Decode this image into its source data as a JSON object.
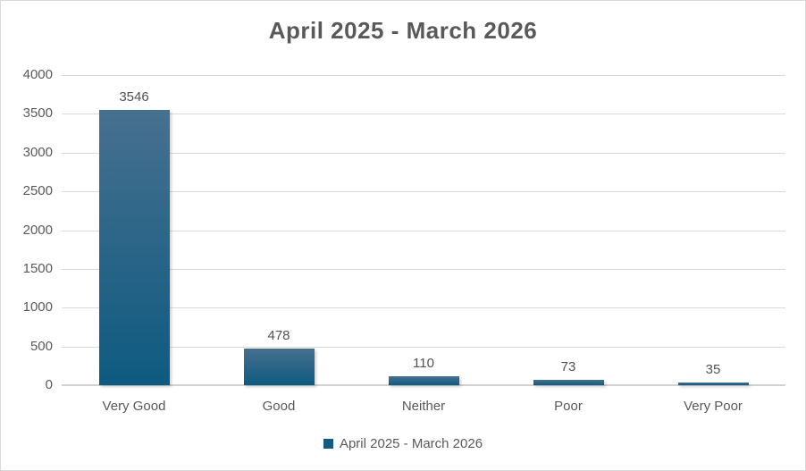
{
  "chart_data": {
    "type": "bar",
    "title": "April 2025 - March 2026",
    "categories": [
      "Very Good",
      "Good",
      "Neither",
      "Poor",
      "Very Poor"
    ],
    "values": [
      3546,
      478,
      110,
      73,
      35
    ],
    "xlabel": "",
    "ylabel": "",
    "ylim": [
      0,
      4000
    ],
    "yticks": [
      0,
      500,
      1000,
      1500,
      2000,
      2500,
      3000,
      3500,
      4000
    ],
    "grid": true,
    "data_labels": true,
    "legend_position": "bottom"
  },
  "legend": {
    "label": "April 2025 - March 2026"
  },
  "colors": {
    "bar_gradient_top": "#47708f",
    "bar_gradient_bottom": "#0e5a80",
    "legend_marker": "#14597f",
    "gridline": "#d9d9d9",
    "axis_line": "#d2d2d2",
    "text": "#595959",
    "border": "#d9d9d9"
  }
}
